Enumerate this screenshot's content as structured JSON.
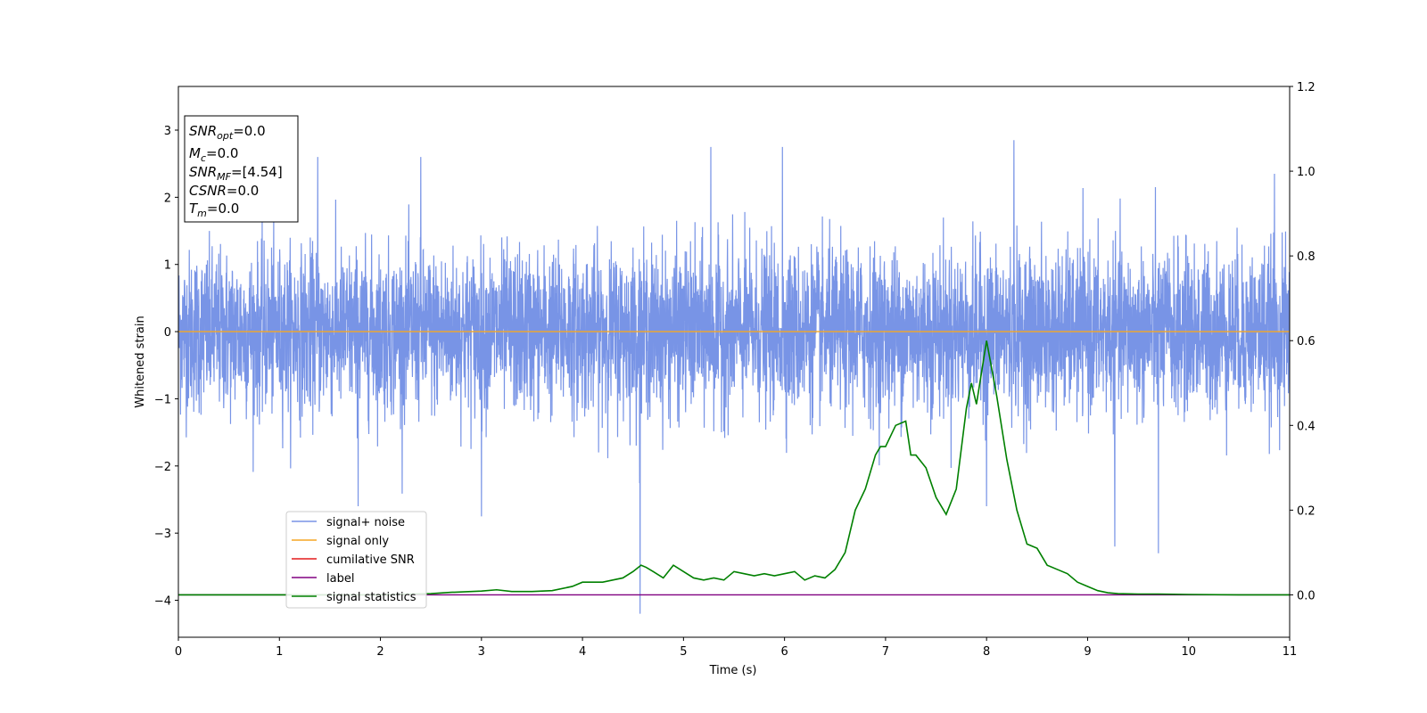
{
  "chart_data": {
    "type": "line",
    "xlabel": "Time (s)",
    "ylabel": "Whitened strain",
    "xlim": [
      0,
      11
    ],
    "ylim": [
      -4.55,
      3.65
    ],
    "y2lim": [
      -0.1,
      1.2
    ],
    "x_ticks": [
      0,
      1,
      2,
      3,
      4,
      5,
      6,
      7,
      8,
      9,
      10,
      11
    ],
    "y_ticks": [
      -4,
      -3,
      -2,
      -1,
      0,
      1,
      2,
      3
    ],
    "y2_ticks": [
      "0.0",
      "0.2",
      "0.4",
      "0.6",
      "0.8",
      "1.0",
      "1.2"
    ],
    "grid": false,
    "legend_position": "lower-left",
    "info_box": {
      "snr_opt": {
        "base": "SNR",
        "sub": "opt",
        "value": "=0.0"
      },
      "mc": {
        "base": "M",
        "sub": "c",
        "value": "=0.0"
      },
      "snr_mf": {
        "base": "SNR",
        "sub": "MF",
        "value": "=[4.54]"
      },
      "csnr": {
        "base": "CSNR",
        "sub": "",
        "value": "=0.0"
      },
      "tm": {
        "base": "T",
        "sub": "m",
        "value": "=0.0"
      }
    },
    "series": [
      {
        "name": "signal+ noise",
        "axis": "left",
        "color": "#7894e6",
        "noise_std": 0.6,
        "range": [
          -4.2,
          2.85
        ],
        "notable_spikes": [
          {
            "x": 1.38,
            "y": 2.6
          },
          {
            "x": 2.4,
            "y": 2.6
          },
          {
            "x": 5.27,
            "y": 2.75
          },
          {
            "x": 5.98,
            "y": 2.75
          },
          {
            "x": 8.27,
            "y": 2.85
          },
          {
            "x": 10.85,
            "y": 2.35
          },
          {
            "x": 4.57,
            "y": -4.2
          },
          {
            "x": 3.0,
            "y": -2.75
          },
          {
            "x": 1.78,
            "y": -2.6
          },
          {
            "x": 9.27,
            "y": -3.2
          },
          {
            "x": 9.7,
            "y": -3.3
          },
          {
            "x": 8.0,
            "y": -2.6
          }
        ]
      },
      {
        "name": "signal only",
        "axis": "left",
        "color": "#f5a623",
        "x": [
          0,
          11
        ],
        "y": [
          0,
          0
        ]
      },
      {
        "name": "cumilative SNR",
        "axis": "right",
        "color": "#e41a1c",
        "x": [],
        "y": []
      },
      {
        "name": "label",
        "axis": "right",
        "color": "#800080",
        "x": [
          0,
          11
        ],
        "y": [
          0,
          0
        ]
      },
      {
        "name": "signal statistics",
        "axis": "right",
        "color": "#008000",
        "x": [
          0,
          0.5,
          1,
          1.5,
          2,
          2.5,
          2.7,
          3,
          3.15,
          3.3,
          3.5,
          3.7,
          3.9,
          4,
          4.2,
          4.3,
          4.4,
          4.5,
          4.58,
          4.63,
          4.7,
          4.8,
          4.9,
          5.0,
          5.1,
          5.2,
          5.3,
          5.4,
          5.5,
          5.6,
          5.7,
          5.8,
          5.9,
          6.0,
          6.1,
          6.2,
          6.3,
          6.4,
          6.5,
          6.6,
          6.7,
          6.8,
          6.9,
          6.95,
          7.0,
          7.1,
          7.2,
          7.25,
          7.3,
          7.4,
          7.5,
          7.6,
          7.7,
          7.8,
          7.85,
          7.9,
          8.0,
          8.1,
          8.2,
          8.3,
          8.4,
          8.5,
          8.6,
          8.7,
          8.8,
          8.9,
          9.0,
          9.1,
          9.2,
          9.3,
          9.5,
          9.7,
          10,
          10.5,
          11
        ],
        "y": [
          0.0,
          0.0,
          0.0,
          0.0,
          0.0,
          0.003,
          0.006,
          0.009,
          0.012,
          0.008,
          0.008,
          0.01,
          0.02,
          0.03,
          0.03,
          0.035,
          0.04,
          0.055,
          0.07,
          0.065,
          0.055,
          0.04,
          0.07,
          0.055,
          0.04,
          0.035,
          0.04,
          0.035,
          0.055,
          0.05,
          0.045,
          0.05,
          0.045,
          0.05,
          0.055,
          0.035,
          0.045,
          0.04,
          0.06,
          0.1,
          0.2,
          0.25,
          0.33,
          0.35,
          0.35,
          0.4,
          0.41,
          0.33,
          0.33,
          0.3,
          0.23,
          0.19,
          0.25,
          0.44,
          0.5,
          0.45,
          0.6,
          0.47,
          0.32,
          0.2,
          0.12,
          0.11,
          0.07,
          0.06,
          0.05,
          0.03,
          0.02,
          0.01,
          0.005,
          0.003,
          0.002,
          0.002,
          0.001,
          0.0,
          0.0
        ]
      }
    ]
  }
}
